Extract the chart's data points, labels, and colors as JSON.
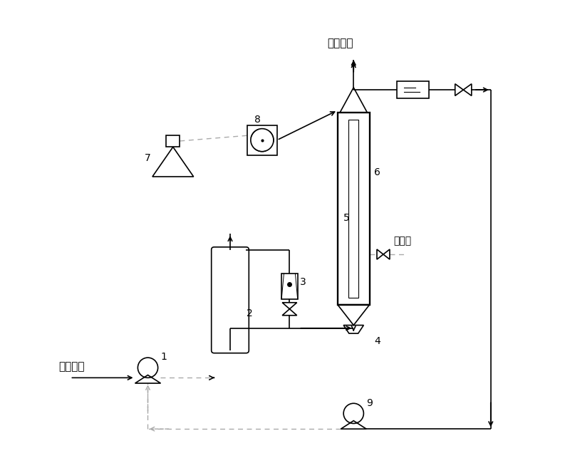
{
  "bg_color": "#ffffff",
  "line_color": "#000000",
  "dashed_color": "#aaaaaa",
  "text_color": "#000000",
  "label_outlet_gas": "出口气体",
  "label_inlet_gas": "甲苯废气",
  "label_drain": "排水口",
  "figsize": [
    8.0,
    6.5
  ],
  "dpi": 100
}
